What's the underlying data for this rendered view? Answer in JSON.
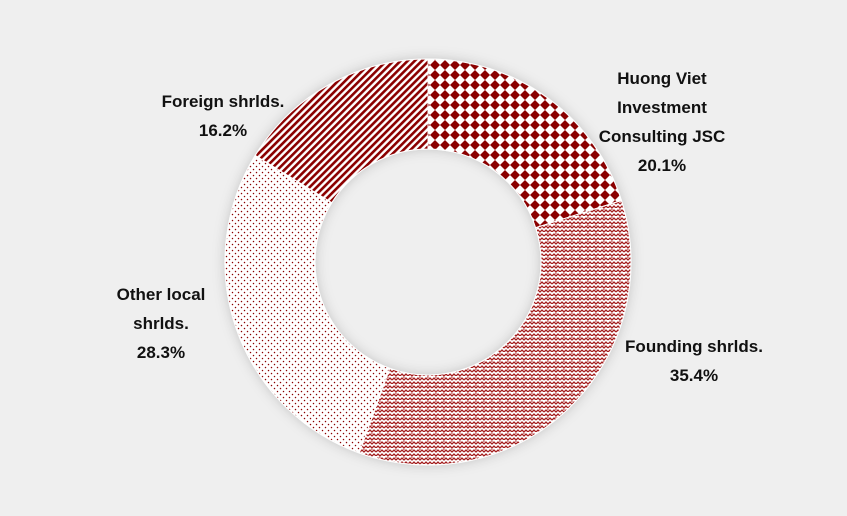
{
  "chart_data": {
    "type": "pie",
    "variant": "donut",
    "title": "",
    "legend": "none",
    "slices": [
      {
        "label_lines": [
          "Huong Viet",
          "Investment",
          "Consulting JSC"
        ],
        "value_text": "20.1%",
        "value": 20.1,
        "color": "#8b0000",
        "pattern": "diamond-checker"
      },
      {
        "label_lines": [
          "Founding shrlds."
        ],
        "value_text": "35.4%",
        "value": 35.4,
        "color": "#a31a1a",
        "pattern": "weave"
      },
      {
        "label_lines": [
          "Other local",
          "shrlds."
        ],
        "value_text": "28.3%",
        "value": 28.3,
        "color": "#8b0000",
        "pattern": "sparse-dots"
      },
      {
        "label_lines": [
          "Foreign shrlds."
        ],
        "value_text": "16.2%",
        "value": 16.2,
        "color": "#8b0000",
        "pattern": "diagonal-stripes"
      }
    ]
  }
}
